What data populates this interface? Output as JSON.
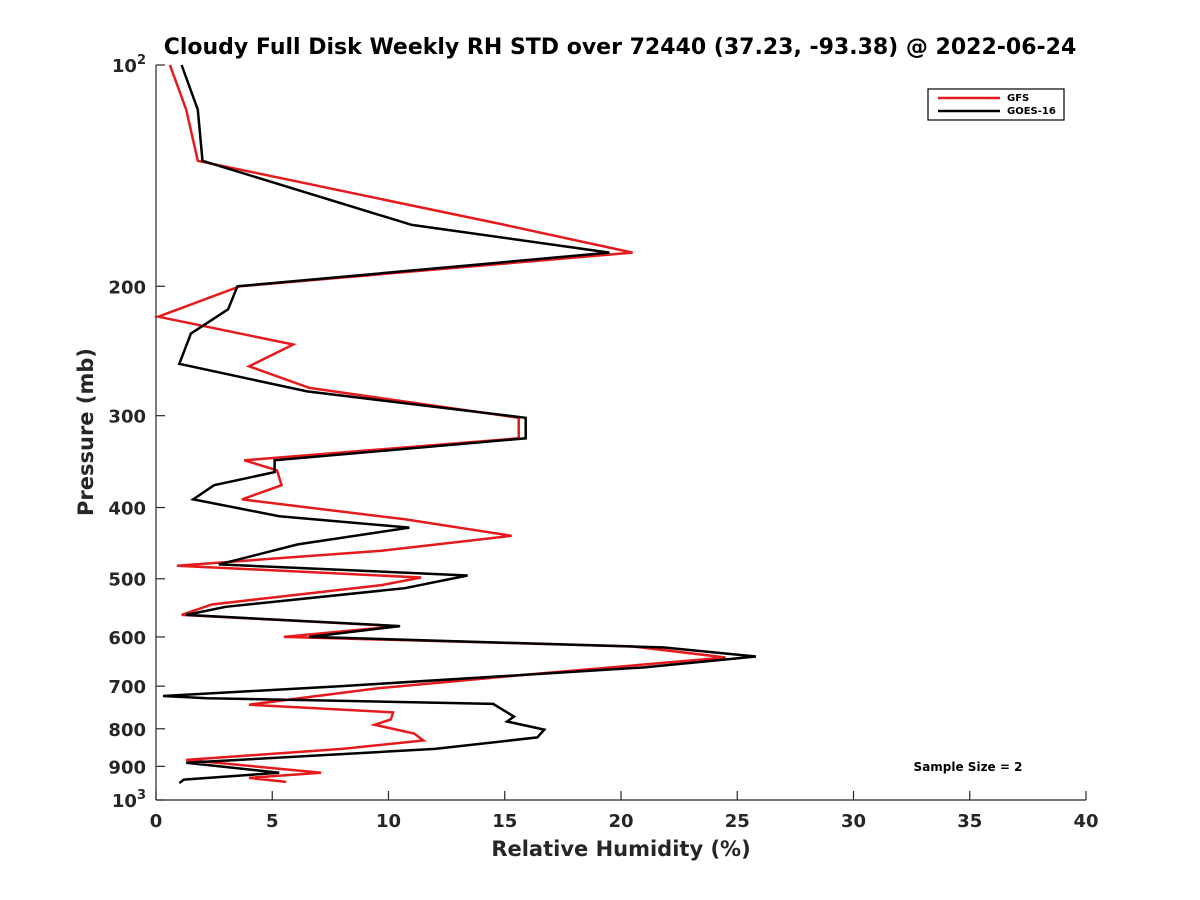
{
  "chart_data": {
    "type": "line",
    "orientation": "vertical-profile",
    "title": "Cloudy Full Disk Weekly RH STD over 72440 (37.23, -93.38) @ 2022-06-24",
    "xlabel": "Relative Humidity (%)",
    "ylabel": "Pressure (mb)",
    "xlim": [
      0,
      40
    ],
    "ylim": [
      100,
      1000
    ],
    "y_scale": "log",
    "y_reversed": true,
    "grid": false,
    "legend_position": "top-right",
    "x_ticks": [
      "0",
      "5",
      "10",
      "15",
      "20",
      "25",
      "30",
      "35",
      "40"
    ],
    "y_ticks": [
      {
        "value": 100,
        "base": "10",
        "exp": "2"
      },
      {
        "value": 200,
        "label": "200"
      },
      {
        "value": 300,
        "label": "300"
      },
      {
        "value": 400,
        "label": "400"
      },
      {
        "value": 500,
        "label": "500"
      },
      {
        "value": 600,
        "label": "600"
      },
      {
        "value": 700,
        "label": "700"
      },
      {
        "value": 800,
        "label": "800"
      },
      {
        "value": 900,
        "label": "900"
      },
      {
        "value": 1000,
        "base": "10",
        "exp": "3"
      }
    ],
    "annotation": "Sample Size = 2",
    "series": [
      {
        "name": "GFS",
        "color": "#e41a1c",
        "points": [
          [
            0.6,
            100
          ],
          [
            1.3,
            115
          ],
          [
            1.8,
            135
          ],
          [
            15,
            165
          ],
          [
            20.5,
            180
          ],
          [
            3.6,
            200
          ],
          [
            0.1,
            220
          ],
          [
            5.9,
            240
          ],
          [
            4.0,
            257
          ],
          [
            6.6,
            275
          ],
          [
            15.6,
            302
          ],
          [
            15.6,
            322
          ],
          [
            3.8,
            345
          ],
          [
            5.2,
            356
          ],
          [
            5.4,
            373
          ],
          [
            3.7,
            390
          ],
          [
            10.7,
            415
          ],
          [
            15.3,
            437
          ],
          [
            9.7,
            458
          ],
          [
            0.9,
            480
          ],
          [
            11.4,
            498
          ],
          [
            9.7,
            510
          ],
          [
            2.4,
            542
          ],
          [
            1.1,
            560
          ],
          [
            10.4,
            580
          ],
          [
            5.5,
            600
          ],
          [
            20.5,
            618
          ],
          [
            24.5,
            640
          ],
          [
            16.0,
            675
          ],
          [
            9.5,
            705
          ],
          [
            4.0,
            742
          ],
          [
            10.2,
            760
          ],
          [
            10.1,
            777
          ],
          [
            9.4,
            790
          ],
          [
            11.1,
            812
          ],
          [
            11.5,
            830
          ],
          [
            8.0,
            852
          ],
          [
            1.3,
            882
          ],
          [
            7.1,
            918
          ],
          [
            4.0,
            933
          ],
          [
            5.6,
            945
          ]
        ]
      },
      {
        "name": "GOES-16",
        "color": "#000000",
        "points": [
          [
            1.1,
            100
          ],
          [
            1.8,
            115
          ],
          [
            2.0,
            135
          ],
          [
            11,
            165
          ],
          [
            19.5,
            180
          ],
          [
            3.5,
            200
          ],
          [
            3.1,
            215
          ],
          [
            1.5,
            232
          ],
          [
            1.0,
            255
          ],
          [
            6.5,
            278
          ],
          [
            15.9,
            302
          ],
          [
            15.9,
            322
          ],
          [
            5.1,
            345
          ],
          [
            5.1,
            358
          ],
          [
            2.5,
            373
          ],
          [
            1.6,
            390
          ],
          [
            5.3,
            411
          ],
          [
            10.9,
            426
          ],
          [
            6.1,
            449
          ],
          [
            2.7,
            478
          ],
          [
            13.4,
            495
          ],
          [
            10.7,
            515
          ],
          [
            3.0,
            546
          ],
          [
            1.3,
            560
          ],
          [
            10.5,
            580
          ],
          [
            6.6,
            600
          ],
          [
            21.8,
            620
          ],
          [
            25.8,
            638
          ],
          [
            21.0,
            660
          ],
          [
            8.0,
            700
          ],
          [
            0.3,
            722
          ],
          [
            2.2,
            727
          ],
          [
            14.5,
            740
          ],
          [
            15.4,
            770
          ],
          [
            15.1,
            782
          ],
          [
            16.7,
            802
          ],
          [
            16.4,
            822
          ],
          [
            12,
            852
          ],
          [
            1.3,
            890
          ],
          [
            5.3,
            918
          ],
          [
            1.2,
            938
          ],
          [
            1.0,
            948
          ]
        ]
      }
    ]
  }
}
